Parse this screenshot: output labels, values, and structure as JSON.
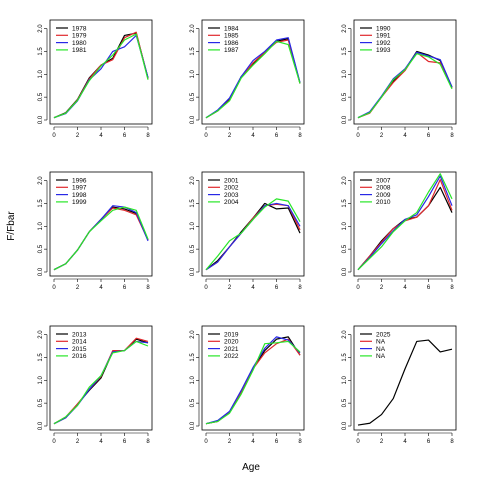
{
  "chart_data": {
    "type": "line",
    "xlabel": "Age",
    "ylabel": "F/Fbar",
    "x": [
      0,
      1,
      2,
      3,
      4,
      5,
      6,
      7,
      8
    ],
    "xticks": [
      "0",
      "2",
      "4",
      "6",
      "8"
    ],
    "yticks": [
      "0.0",
      "0.5",
      "1.0",
      "1.5",
      "2.0"
    ],
    "xlim": [
      0,
      8
    ],
    "ylim": [
      0,
      2.1
    ],
    "legend_position": "top-left",
    "grid": false,
    "series_colors": [
      "#000000",
      "#e0282c",
      "#2828e6",
      "#28e628"
    ],
    "panels": [
      {
        "series": [
          {
            "name": "1978",
            "values": [
              0.05,
              0.16,
              0.45,
              0.92,
              1.2,
              1.35,
              1.85,
              1.9,
              0.92
            ]
          },
          {
            "name": "1979",
            "values": [
              0.05,
              0.15,
              0.44,
              0.9,
              1.2,
              1.32,
              1.8,
              1.92,
              0.9
            ]
          },
          {
            "name": "1980",
            "values": [
              0.05,
              0.14,
              0.42,
              0.88,
              1.12,
              1.5,
              1.6,
              1.85,
              0.93
            ]
          },
          {
            "name": "1981",
            "values": [
              0.05,
              0.15,
              0.43,
              0.86,
              1.18,
              1.42,
              1.75,
              1.88,
              0.88
            ]
          }
        ]
      },
      {
        "series": [
          {
            "name": "1984",
            "values": [
              0.05,
              0.2,
              0.45,
              0.95,
              1.22,
              1.48,
              1.72,
              1.78,
              0.8
            ]
          },
          {
            "name": "1985",
            "values": [
              0.05,
              0.2,
              0.43,
              0.93,
              1.25,
              1.48,
              1.7,
              1.75,
              0.8
            ]
          },
          {
            "name": "1986",
            "values": [
              0.05,
              0.22,
              0.48,
              0.95,
              1.3,
              1.5,
              1.75,
              1.8,
              0.82
            ]
          },
          {
            "name": "1987",
            "values": [
              0.05,
              0.2,
              0.42,
              0.92,
              1.2,
              1.45,
              1.72,
              1.65,
              0.8
            ]
          }
        ]
      },
      {
        "series": [
          {
            "name": "1990",
            "values": [
              0.05,
              0.16,
              0.5,
              0.85,
              1.1,
              1.5,
              1.42,
              1.3,
              0.72
            ]
          },
          {
            "name": "1991",
            "values": [
              0.05,
              0.15,
              0.5,
              0.82,
              1.08,
              1.48,
              1.28,
              1.25,
              0.7
            ]
          },
          {
            "name": "1992",
            "values": [
              0.05,
              0.18,
              0.52,
              0.9,
              1.12,
              1.48,
              1.4,
              1.32,
              0.72
            ]
          },
          {
            "name": "1993",
            "values": [
              0.05,
              0.16,
              0.5,
              0.88,
              1.1,
              1.45,
              1.38,
              1.22,
              0.68
            ]
          }
        ]
      },
      {
        "series": [
          {
            "name": "1996",
            "values": [
              0.05,
              0.18,
              0.48,
              0.88,
              1.15,
              1.42,
              1.38,
              1.28,
              0.7
            ]
          },
          {
            "name": "1997",
            "values": [
              0.05,
              0.18,
              0.48,
              0.88,
              1.15,
              1.4,
              1.35,
              1.25,
              0.7
            ]
          },
          {
            "name": "1998",
            "values": [
              0.05,
              0.18,
              0.48,
              0.88,
              1.15,
              1.45,
              1.42,
              1.3,
              0.68
            ]
          },
          {
            "name": "1999",
            "values": [
              0.05,
              0.18,
              0.48,
              0.88,
              1.12,
              1.35,
              1.42,
              1.35,
              0.72
            ]
          }
        ]
      },
      {
        "series": [
          {
            "name": "2001",
            "values": [
              0.05,
              0.25,
              0.55,
              0.88,
              1.18,
              1.5,
              1.38,
              1.4,
              0.85
            ]
          },
          {
            "name": "2002",
            "values": [
              0.05,
              0.22,
              0.55,
              0.85,
              1.18,
              1.45,
              1.48,
              1.45,
              0.92
            ]
          },
          {
            "name": "2003",
            "values": [
              0.05,
              0.22,
              0.55,
              0.85,
              1.15,
              1.45,
              1.5,
              1.45,
              1.0
            ]
          },
          {
            "name": "2004",
            "values": [
              0.05,
              0.35,
              0.68,
              0.85,
              1.15,
              1.42,
              1.6,
              1.55,
              1.1
            ]
          }
        ]
      },
      {
        "series": [
          {
            "name": "2007",
            "values": [
              0.05,
              0.35,
              0.68,
              0.95,
              1.15,
              1.2,
              1.45,
              1.85,
              1.3
            ]
          },
          {
            "name": "2008",
            "values": [
              0.05,
              0.35,
              0.65,
              0.95,
              1.12,
              1.2,
              1.45,
              2.02,
              1.35
            ]
          },
          {
            "name": "2009",
            "values": [
              0.05,
              0.32,
              0.62,
              0.9,
              1.15,
              1.25,
              1.65,
              2.1,
              1.45
            ]
          },
          {
            "name": "2010",
            "values": [
              0.05,
              0.3,
              0.55,
              0.88,
              1.12,
              1.3,
              1.75,
              2.15,
              1.6
            ]
          }
        ]
      },
      {
        "series": [
          {
            "name": "2013",
            "values": [
              0.05,
              0.18,
              0.48,
              0.78,
              1.05,
              1.62,
              1.65,
              1.9,
              1.82
            ]
          },
          {
            "name": "2014",
            "values": [
              0.05,
              0.2,
              0.48,
              0.8,
              1.08,
              1.65,
              1.65,
              1.92,
              1.85
            ]
          },
          {
            "name": "2015",
            "values": [
              0.05,
              0.18,
              0.45,
              0.8,
              1.1,
              1.62,
              1.65,
              1.85,
              1.82
            ]
          },
          {
            "name": "2016",
            "values": [
              0.05,
              0.2,
              0.45,
              0.85,
              1.1,
              1.6,
              1.65,
              1.85,
              1.75
            ]
          }
        ]
      },
      {
        "series": [
          {
            "name": "2019",
            "values": [
              0.05,
              0.1,
              0.3,
              0.75,
              1.25,
              1.65,
              1.9,
              1.95,
              1.55
            ]
          },
          {
            "name": "2020",
            "values": [
              0.05,
              0.1,
              0.3,
              0.75,
              1.25,
              1.6,
              1.8,
              1.9,
              1.55
            ]
          },
          {
            "name": "2021",
            "values": [
              0.05,
              0.12,
              0.32,
              0.78,
              1.28,
              1.7,
              1.95,
              1.88,
              1.6
            ]
          },
          {
            "name": "2022",
            "values": [
              0.05,
              0.1,
              0.28,
              0.7,
              1.22,
              1.8,
              1.82,
              1.85,
              1.62
            ]
          }
        ]
      },
      {
        "series": [
          {
            "name": "2025",
            "values": [
              0.02,
              0.06,
              0.25,
              0.6,
              1.25,
              1.85,
              1.88,
              1.62,
              1.68
            ]
          },
          {
            "name": "NA",
            "values": []
          },
          {
            "name": "NA",
            "values": []
          },
          {
            "name": "NA",
            "values": []
          }
        ]
      }
    ]
  }
}
